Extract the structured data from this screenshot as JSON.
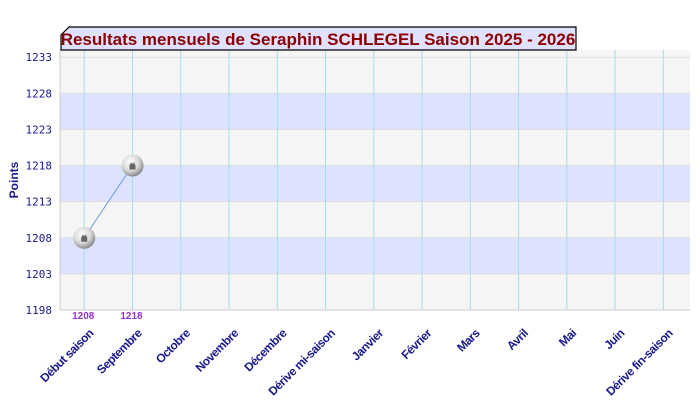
{
  "chart_data": {
    "type": "line",
    "title": "Resultats mensuels de Seraphin SCHLEGEL Saison 2025 - 2026",
    "xlabel": "",
    "ylabel": "Points",
    "categories": [
      "Début saison",
      "Septembre",
      "Octobre",
      "Novembre",
      "Décembre",
      "Dérive mi-saison",
      "Janvier",
      "Février",
      "Mars",
      "Avril",
      "Mai",
      "Juin",
      "Dérive fin-saison"
    ],
    "series": [
      {
        "values": [
          1208,
          1218,
          null,
          null,
          null,
          null,
          null,
          null,
          null,
          null,
          null,
          null,
          null
        ]
      }
    ],
    "data_labels": [
      "1208",
      "1218"
    ],
    "yticks": [
      1198,
      1203,
      1208,
      1213,
      1218,
      1223,
      1228,
      1233
    ],
    "ylim": [
      1198,
      1234
    ],
    "grid": true,
    "colors": {
      "title_text": "#8b0000",
      "title_bg": "#e0e0ff",
      "band": "#dde3ff",
      "plot_bg": "#f5f5f5",
      "vgrid": "#a8dce8",
      "line": "#6699dd",
      "tick_text": "#1a1a8c",
      "data_label": "#9933cc"
    }
  }
}
